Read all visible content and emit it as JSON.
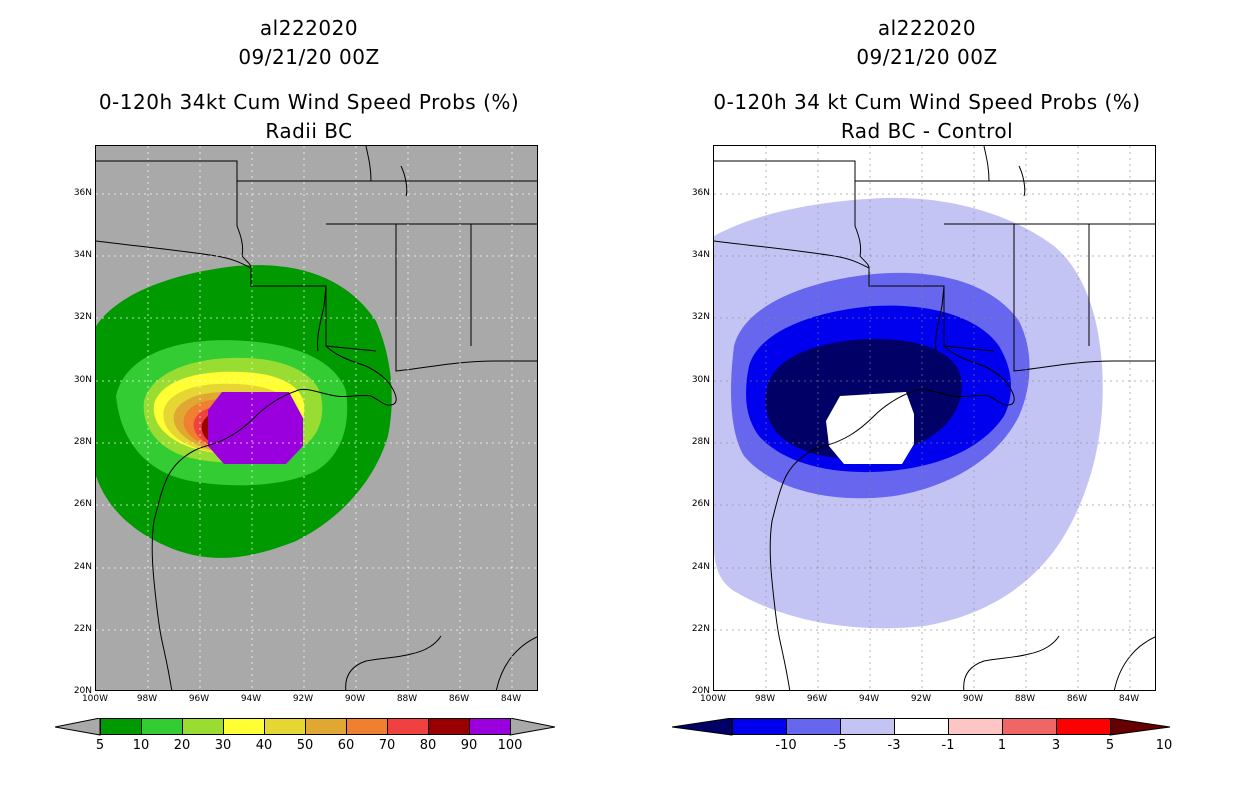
{
  "left_panel": {
    "storm": "al222020",
    "date": "09/21/20 00Z",
    "title": "0-120h 34kt Cum Wind Speed Probs (%)",
    "subtitle": "Radii BC",
    "colorbar_labels": [
      "5",
      "10",
      "20",
      "30",
      "40",
      "50",
      "60",
      "70",
      "80",
      "90",
      "100"
    ],
    "colorbar_colors": [
      "#009900",
      "#33cc33",
      "#99dd33",
      "#ffff33",
      "#e6d633",
      "#e0a833",
      "#f08030",
      "#f04040",
      "#990000",
      "#9900dd"
    ],
    "background_color": "#a9a9a9"
  },
  "right_panel": {
    "storm": "al222020",
    "date": "09/21/20 00Z",
    "title": "0-120h 34 kt Cum Wind Speed Probs (%)",
    "subtitle": "Rad BC - Control",
    "colorbar_labels": [
      "-10",
      "-5",
      "-3",
      "-1",
      "1",
      "3",
      "5",
      "10"
    ],
    "colorbar_colors": [
      "#0000ee",
      "#6666ee",
      "#c4c4f4",
      "#ffffff",
      "#ffc4c4",
      "#f06666",
      "#ff0000"
    ],
    "colorbar_end_colors": [
      "#000066",
      "#660000"
    ]
  },
  "axes": {
    "lat_labels": [
      "36N",
      "34N",
      "32N",
      "30N",
      "28N",
      "26N",
      "24N",
      "22N",
      "20N"
    ],
    "lon_labels": [
      "100W",
      "98W",
      "96W",
      "94W",
      "92W",
      "90W",
      "88W",
      "86W",
      "84W"
    ]
  }
}
